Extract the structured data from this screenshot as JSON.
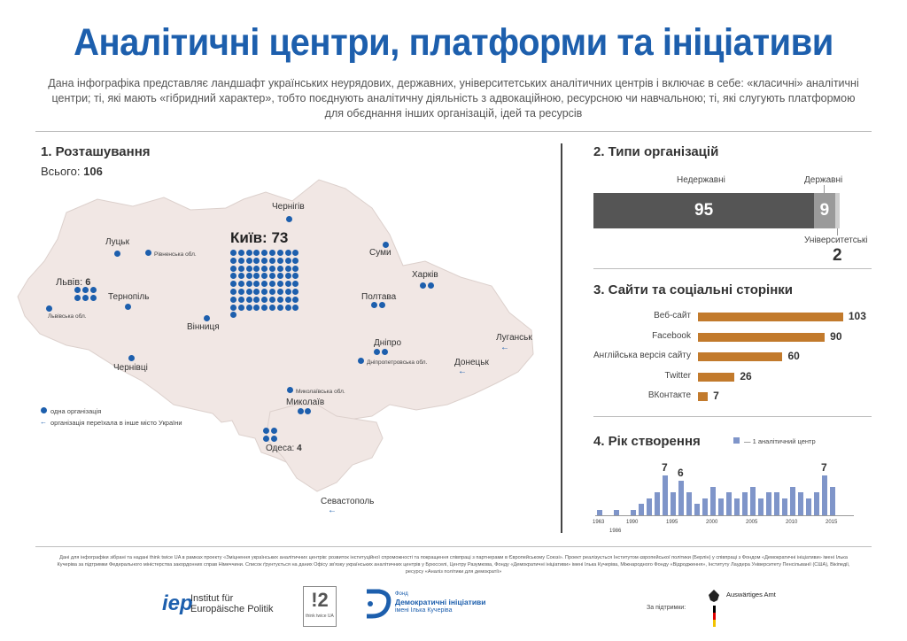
{
  "title": "Аналітичні центри, платформи та ініціативи",
  "intro": "Дана інфографіка представляє ландшафт українських неурядових, державних, університетських аналітичних центрів і включає в себе: «класичні» аналітичні центри; ті, які мають «гібридний характер», тобто поєднують аналітичну діяльність з адвокаційною, ресурсною чи навчальною; ті, які слугують платформою для обєднання інших організацій, ідей та ресурсів",
  "section1": {
    "title": "1. Розташування",
    "total_label": "Всього:",
    "total_value": "106",
    "kyiv_label": "Київ:",
    "kyiv_value": "73",
    "cities": {
      "chernihiv": "Чернігів",
      "lutsk": "Луцьк",
      "rivne": "Рівненська обл.",
      "sumy": "Суми",
      "lviv": "Львів:",
      "lviv_count": "6",
      "lviv_obl": "Львівська обл.",
      "ternopil": "Тернопіль",
      "kharkiv": "Харків",
      "poltava": "Полтава",
      "vinnytsia": "Вінниця",
      "dnipro": "Дніпро",
      "dnipro_obl": "Дніпропетровська обл.",
      "luhansk": "Луганськ",
      "chernivtsi": "Чернівці",
      "donetsk": "Донецьк",
      "mykolaiv_obl": "Миколаївська обл.",
      "mykolaiv": "Миколаїв",
      "odesa": "Одеса:",
      "odesa_count": "4",
      "sevastopol": "Севастополь"
    },
    "arrow_glyph": "←",
    "legend_one": "одна організація",
    "legend_moved": "організація переїхала в інше місто України"
  },
  "section2": {
    "title": "2. Типи організацій",
    "ngo_label": "Недержавні",
    "ngo_value": "95",
    "state_label": "Державні",
    "state_value": "9",
    "univ_label": "Університетські",
    "univ_value": "2",
    "colors": {
      "ngo": "#555555",
      "state": "#9a9a9a",
      "univ": "#cfcfcf"
    }
  },
  "section3": {
    "title": "3. Сайти та соціальні сторінки",
    "items": [
      {
        "label": "Веб-сайт",
        "value": "103"
      },
      {
        "label": "Facebook",
        "value": "90"
      },
      {
        "label": "Англійська версія сайту",
        "value": "60"
      },
      {
        "label": "Twitter",
        "value": "26"
      },
      {
        "label": "ВКонтакте",
        "value": "7"
      }
    ],
    "color": "#c27a2c"
  },
  "section4": {
    "title": "4. Рік створення",
    "legend": "— 1 аналітичний центр",
    "color": "#7f95c9",
    "ticks": [
      "1963",
      "1986",
      "1990",
      "1995",
      "2000",
      "2005",
      "2010",
      "2015"
    ],
    "peak_labels": [
      "7",
      "6",
      "7"
    ]
  },
  "chart_data": [
    {
      "type": "bar",
      "title": "2. Типи організацій",
      "categories": [
        "Недержавні",
        "Державні",
        "Університетські"
      ],
      "values": [
        95,
        9,
        2
      ]
    },
    {
      "type": "bar",
      "title": "3. Сайти та соціальні сторінки",
      "categories": [
        "Веб-сайт",
        "Facebook",
        "Англійська версія сайту",
        "Twitter",
        "ВКонтакте"
      ],
      "values": [
        103,
        90,
        60,
        26,
        7
      ]
    },
    {
      "type": "bar",
      "title": "4. Рік створення",
      "x": [
        1963,
        1986,
        1990,
        1991,
        1992,
        1993,
        1994,
        1995,
        1996,
        1997,
        1998,
        1999,
        2000,
        2001,
        2002,
        2003,
        2004,
        2005,
        2006,
        2007,
        2008,
        2009,
        2010,
        2011,
        2012,
        2013,
        2014,
        2015
      ],
      "values": [
        1,
        1,
        1,
        2,
        3,
        4,
        7,
        4,
        6,
        4,
        2,
        3,
        5,
        3,
        4,
        3,
        4,
        5,
        3,
        4,
        4,
        3,
        5,
        4,
        3,
        4,
        7,
        5
      ]
    }
  ],
  "footer": {
    "text": "Дані для інфографіки зібрані та надані think twice UA в рамках проекту «Зміцнення українських аналітичних центрів: розвиток інституційної спроможності та покращення співпраці з партнерами в Європейському Союзі». Проект реалізується Інститутом європейської політики (Берлін) у співпраці з Фондом «Демократичні ініціативи» імені Ілька Кучеріва за підтримки Федерального міністерства закордонних справ Німеччини. Список ґрунтується на даних Офісу зв'язку українських аналітичних центрів у Брюсселі, Центру Разумкова, Фонду «Демократичні ініціативи» імені Ілька Кучеріва, Міжнародного Фонду «Відродження», Інституту Лаудера Університету Пенсільванії (США), Вікіпедії, ресурсу «Аналіз політики для демократії»",
    "iep_mark": "iep",
    "iep_line1": "Institut für",
    "iep_line2": "Europäische Politik",
    "tt_mark": "!2",
    "tt_text": "think twice UA",
    "fond_small": "Фонд",
    "fond_big": "Демократичні ініціативи",
    "fond_name": "імені Ілька Кучеріва",
    "support": "За підтримки:",
    "aa": "Auswärtiges Amt"
  }
}
